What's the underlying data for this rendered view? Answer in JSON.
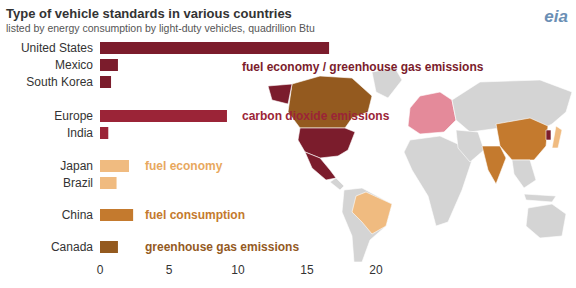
{
  "chart_data": {
    "type": "bar",
    "orientation": "horizontal",
    "title": "Type of vehicle standards in various countries",
    "subtitle": "listed by energy consumption by light-duty vehicles, quadrillion Btu",
    "source": "eia",
    "categories": [
      "United States",
      "Mexico",
      "South Korea",
      "Europe",
      "India",
      "Japan",
      "Brazil",
      "China",
      "Canada"
    ],
    "values": [
      16.6,
      1.3,
      0.8,
      9.2,
      0.6,
      2.1,
      1.2,
      2.4,
      1.3
    ],
    "colors": [
      "#7b1c2c",
      "#7b1c2c",
      "#7b1c2c",
      "#9b2437",
      "#9b2437",
      "#f0bb80",
      "#f0bb80",
      "#c47a2e",
      "#945a1f"
    ],
    "annotations": [
      {
        "text": "fuel economy / greenhouse gas emissions",
        "color": "#7b1c2c"
      },
      {
        "text": "carbon dioxide emissions",
        "color": "#9b2437"
      },
      {
        "text": "fuel economy",
        "color": "#e8a85e"
      },
      {
        "text": "fuel consumption",
        "color": "#c47a2e"
      },
      {
        "text": "greenhouse gas emissions",
        "color": "#945a1f"
      }
    ],
    "xlim": [
      0,
      20
    ],
    "xticks": [
      0,
      5,
      10,
      15,
      20
    ],
    "grid": false,
    "data_labels": false
  }
}
